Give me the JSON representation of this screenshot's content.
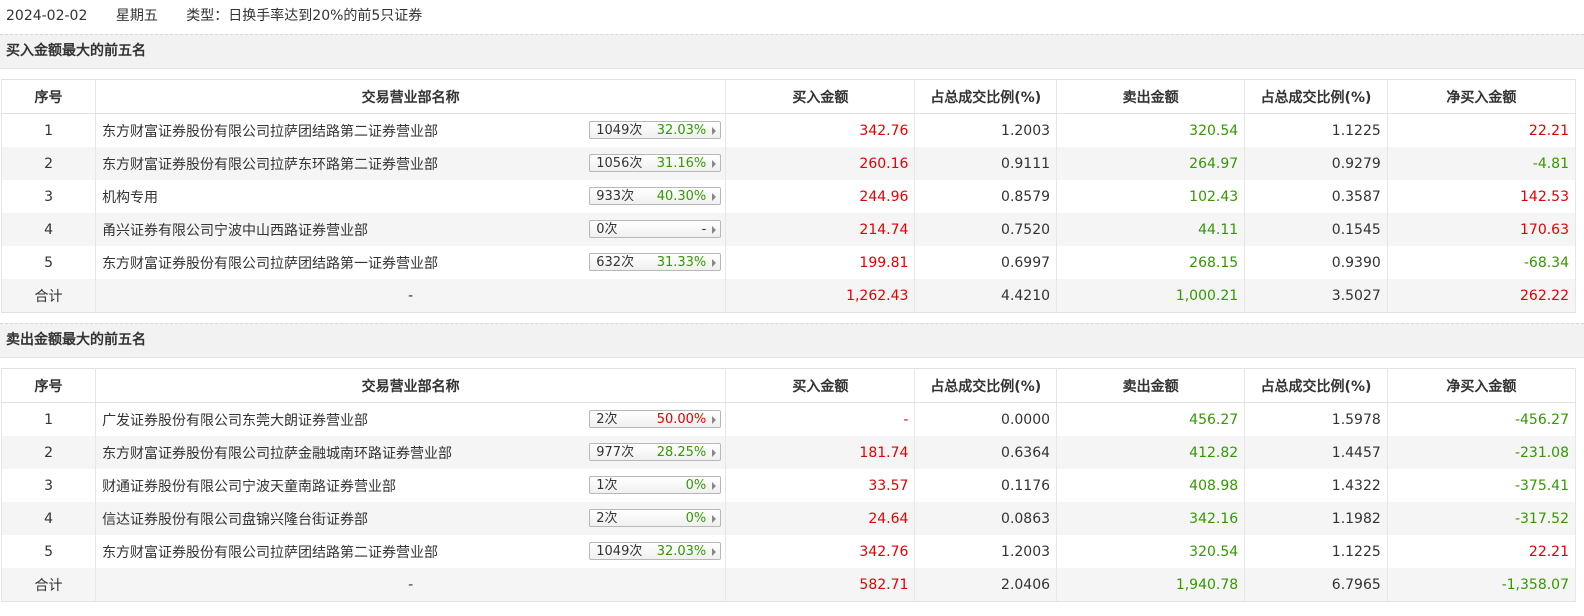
{
  "header": {
    "date": "2024-02-02",
    "weekday": "星期五",
    "type_label": "类型：日换手率达到20%的前5只证券"
  },
  "columns": [
    "序号",
    "交易营业部名称",
    "买入金额",
    "占总成交比例(%)",
    "卖出金额",
    "占总成交比例(%)",
    "净买入金额"
  ],
  "colors": {
    "red": "#e60000",
    "green": "#339900"
  },
  "icons": {
    "badge_arrow": "triangle-right-icon"
  },
  "sections": [
    {
      "title": "买入金额最大的前五名",
      "rows": [
        {
          "idx": "1",
          "name": "东方财富证券股份有限公司拉萨团结路第二证券营业部",
          "times": "1049次",
          "pct": "32.03%",
          "pct_color": "green",
          "buy": "342.76",
          "buy_ratio": "1.2003",
          "sell": "320.54",
          "sell_ratio": "1.1225",
          "net": "22.21",
          "net_color": "red"
        },
        {
          "idx": "2",
          "name": "东方财富证券股份有限公司拉萨东环路第二证券营业部",
          "times": "1056次",
          "pct": "31.16%",
          "pct_color": "green",
          "buy": "260.16",
          "buy_ratio": "0.9111",
          "sell": "264.97",
          "sell_ratio": "0.9279",
          "net": "-4.81",
          "net_color": "green"
        },
        {
          "idx": "3",
          "name": "机构专用",
          "times": "933次",
          "pct": "40.30%",
          "pct_color": "green",
          "buy": "244.96",
          "buy_ratio": "0.8579",
          "sell": "102.43",
          "sell_ratio": "0.3587",
          "net": "142.53",
          "net_color": "red"
        },
        {
          "idx": "4",
          "name": "甬兴证券有限公司宁波中山西路证券营业部",
          "times": "0次",
          "pct": "-",
          "pct_color": "none",
          "buy": "214.74",
          "buy_ratio": "0.7520",
          "sell": "44.11",
          "sell_ratio": "0.1545",
          "net": "170.63",
          "net_color": "red"
        },
        {
          "idx": "5",
          "name": "东方财富证券股份有限公司拉萨团结路第一证券营业部",
          "times": "632次",
          "pct": "31.33%",
          "pct_color": "green",
          "buy": "199.81",
          "buy_ratio": "0.6997",
          "sell": "268.15",
          "sell_ratio": "0.9390",
          "net": "-68.34",
          "net_color": "green"
        }
      ],
      "total": {
        "label": "合计",
        "name": "-",
        "buy": "1,262.43",
        "buy_ratio": "4.4210",
        "sell": "1,000.21",
        "sell_ratio": "3.5027",
        "net": "262.22",
        "net_color": "red"
      }
    },
    {
      "title": "卖出金额最大的前五名",
      "rows": [
        {
          "idx": "1",
          "name": "广发证券股份有限公司东莞大朗证券营业部",
          "times": "2次",
          "pct": "50.00%",
          "pct_color": "red",
          "buy": "-",
          "buy_ratio": "0.0000",
          "sell": "456.27",
          "sell_ratio": "1.5978",
          "net": "-456.27",
          "net_color": "green"
        },
        {
          "idx": "2",
          "name": "东方财富证券股份有限公司拉萨金融城南环路证券营业部",
          "times": "977次",
          "pct": "28.25%",
          "pct_color": "green",
          "buy": "181.74",
          "buy_ratio": "0.6364",
          "sell": "412.82",
          "sell_ratio": "1.4457",
          "net": "-231.08",
          "net_color": "green"
        },
        {
          "idx": "3",
          "name": "财通证券股份有限公司宁波天童南路证券营业部",
          "times": "1次",
          "pct": "0%",
          "pct_color": "green",
          "buy": "33.57",
          "buy_ratio": "0.1176",
          "sell": "408.98",
          "sell_ratio": "1.4322",
          "net": "-375.41",
          "net_color": "green"
        },
        {
          "idx": "4",
          "name": "信达证券股份有限公司盘锦兴隆台街证券部",
          "times": "2次",
          "pct": "0%",
          "pct_color": "green",
          "buy": "24.64",
          "buy_ratio": "0.0863",
          "sell": "342.16",
          "sell_ratio": "1.1982",
          "net": "-317.52",
          "net_color": "green"
        },
        {
          "idx": "5",
          "name": "东方财富证券股份有限公司拉萨团结路第二证券营业部",
          "times": "1049次",
          "pct": "32.03%",
          "pct_color": "green",
          "buy": "342.76",
          "buy_ratio": "1.2003",
          "sell": "320.54",
          "sell_ratio": "1.1225",
          "net": "22.21",
          "net_color": "red"
        }
      ],
      "total": {
        "label": "合计",
        "name": "-",
        "buy": "582.71",
        "buy_ratio": "2.0406",
        "sell": "1,940.78",
        "sell_ratio": "6.7965",
        "net": "-1,358.07",
        "net_color": "green"
      }
    }
  ]
}
